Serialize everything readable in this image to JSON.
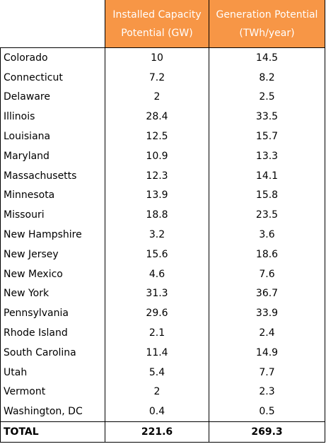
{
  "table": {
    "columns": [
      "Installed Capacity Potential (GW)",
      "Generation Potential (TWh/year)"
    ],
    "rows": [
      [
        "Colorado",
        10,
        14.5
      ],
      [
        "Connecticut",
        7.2,
        8.2
      ],
      [
        "Delaware",
        2,
        2.5
      ],
      [
        "Illinois",
        28.4,
        33.5
      ],
      [
        "Louisiana",
        12.5,
        15.7
      ],
      [
        "Maryland",
        10.9,
        13.3
      ],
      [
        "Massachusetts",
        12.3,
        14.1
      ],
      [
        "Minnesota",
        13.9,
        15.8
      ],
      [
        "Missouri",
        18.8,
        23.5
      ],
      [
        "New Hampshire",
        3.2,
        3.6
      ],
      [
        "New Jersey",
        15.6,
        18.6
      ],
      [
        "New Mexico",
        4.6,
        7.6
      ],
      [
        "New York",
        31.3,
        36.7
      ],
      [
        "Pennsylvania",
        29.6,
        33.9
      ],
      [
        "Rhode Island",
        2.1,
        2.4
      ],
      [
        "South Carolina",
        11.4,
        14.9
      ],
      [
        "Utah",
        5.4,
        7.7
      ],
      [
        "Vermont",
        2,
        2.3
      ],
      [
        "Washington, DC",
        0.4,
        0.5
      ]
    ],
    "total": [
      "TOTAL",
      221.6,
      269.3
    ]
  }
}
